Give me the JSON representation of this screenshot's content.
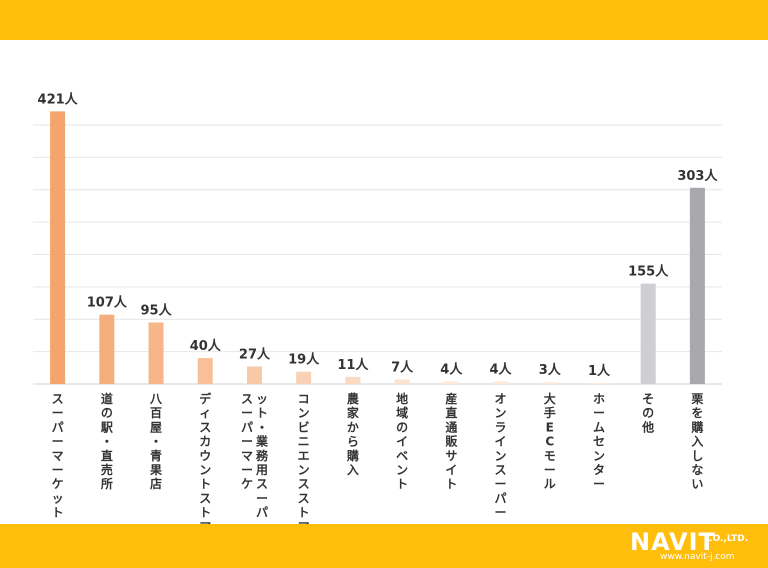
{
  "chart_data": {
    "type": "bar",
    "categories": [
      "スーパーマーケット",
      "道の駅・直売所",
      "八百屋・青果店",
      "ディスカウントストア",
      "スーパーマーケット・業務用スーパー",
      "コンビニエンスストア",
      "農家から購入",
      "地域のイベント",
      "産直通販サイト",
      "オンラインスーパー",
      "大手ECモール",
      "ホームセンター",
      "その他",
      "栗を購入しない"
    ],
    "values": [
      421,
      107,
      95,
      40,
      27,
      19,
      11,
      7,
      4,
      4,
      3,
      1,
      155,
      303
    ],
    "value_labels": [
      "421人",
      "107人",
      "95人",
      "40人",
      "27人",
      "19人",
      "11人",
      "7人",
      "4人",
      "4人",
      "3人",
      "1人",
      "155人",
      "303人"
    ],
    "ylim": [
      0,
      420
    ],
    "grid": true,
    "colors": {
      "gradient_start": "#F5A46E",
      "gradient_end": "#FCEBDD",
      "other": "#CFCFD3",
      "none": "#A9A9AD",
      "grid": "#E6E6E6"
    }
  },
  "brand": {
    "logo_text": "NAVIT",
    "logo_suffix": "CO.,LTD.",
    "url": "www.navit-j.com",
    "band_color": "#FFBE0B"
  }
}
